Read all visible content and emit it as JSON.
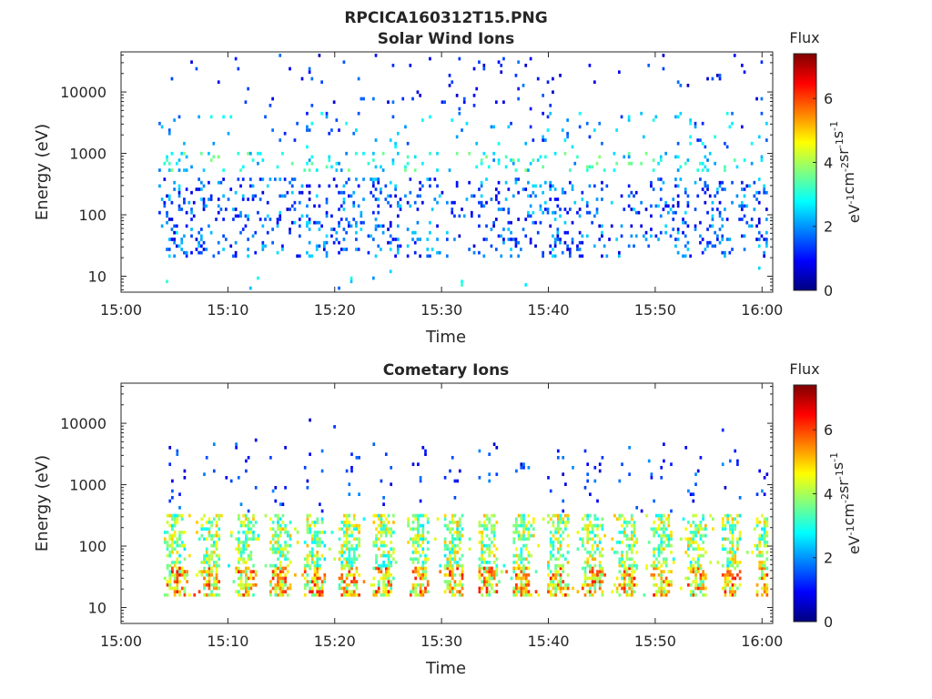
{
  "figure": {
    "title": "RPCICA160312T15.PNG"
  },
  "colormap": {
    "name": "jet",
    "stops": [
      "#00007f",
      "#0000ff",
      "#007fff",
      "#00ffff",
      "#7fff7f",
      "#ffff00",
      "#ff7f00",
      "#ff0000",
      "#7f0000"
    ]
  },
  "chart_data": [
    {
      "type": "heatmap",
      "title": "Solar Wind Ions",
      "xlabel": "Time",
      "ylabel": "Energy (eV)",
      "xlim": [
        "15:00",
        "16:01"
      ],
      "ylim": [
        5.5,
        45000
      ],
      "yscale": "log",
      "xticks": [
        "15:00",
        "15:10",
        "15:20",
        "15:30",
        "15:40",
        "15:50",
        "16:00"
      ],
      "yticks": [
        "10",
        "100",
        "1000",
        "10000"
      ],
      "colorbar": {
        "title": "Flux",
        "label": "eV-1cm-2sr-1s-1",
        "range": [
          0,
          7.4
        ],
        "ticks": [
          "0",
          "2",
          "4",
          "6"
        ]
      },
      "pattern": "sparse",
      "data_start": "15:03:30",
      "data_end": "16:00:30",
      "bands": [
        {
          "energy_min": 20,
          "energy_max": 400,
          "flux_min": 0.6,
          "flux_max": 2.6,
          "density": 0.16
        },
        {
          "energy_min": 500,
          "energy_max": 1000,
          "flux_min": 1.8,
          "flux_max": 3.8,
          "density": 0.13
        },
        {
          "energy_min": 1200,
          "energy_max": 4500,
          "flux_min": 1.0,
          "flux_max": 3.0,
          "density": 0.05
        },
        {
          "energy_min": 5000,
          "energy_max": 40000,
          "flux_min": 0.5,
          "flux_max": 1.8,
          "density": 0.02
        },
        {
          "energy_min": 6,
          "energy_max": 14,
          "flux_min": 1.5,
          "flux_max": 3.2,
          "density": 0.01
        }
      ]
    },
    {
      "type": "heatmap",
      "title": "Cometary Ions",
      "xlabel": "Time",
      "ylabel": "Energy (eV)",
      "xlim": [
        "15:00",
        "16:01"
      ],
      "ylim": [
        5.5,
        45000
      ],
      "yscale": "log",
      "xticks": [
        "15:00",
        "15:10",
        "15:20",
        "15:30",
        "15:40",
        "15:50",
        "16:00"
      ],
      "yticks": [
        "10",
        "100",
        "1000",
        "10000"
      ],
      "colorbar": {
        "title": "Flux",
        "label": "eV-1cm-2sr-1s-1",
        "range": [
          0,
          7.4
        ],
        "ticks": [
          "0",
          "2",
          "4",
          "6"
        ]
      },
      "pattern": "periodic",
      "data_start": "15:04:00",
      "data_end": "16:00:30",
      "burst_period_min": 3.25,
      "bands": [
        {
          "energy_min": 15,
          "energy_max": 45,
          "flux_min": 3.2,
          "flux_max": 6.4,
          "density": 0.75
        },
        {
          "energy_min": 45,
          "energy_max": 320,
          "flux_min": 2.6,
          "flux_max": 5.2,
          "density": 0.6
        },
        {
          "energy_min": 350,
          "energy_max": 4500,
          "flux_min": 0.5,
          "flux_max": 2.0,
          "density": 0.05
        },
        {
          "energy_min": 5000,
          "energy_max": 12000,
          "flux_min": 0.5,
          "flux_max": 1.5,
          "density": 0.01
        }
      ]
    }
  ]
}
